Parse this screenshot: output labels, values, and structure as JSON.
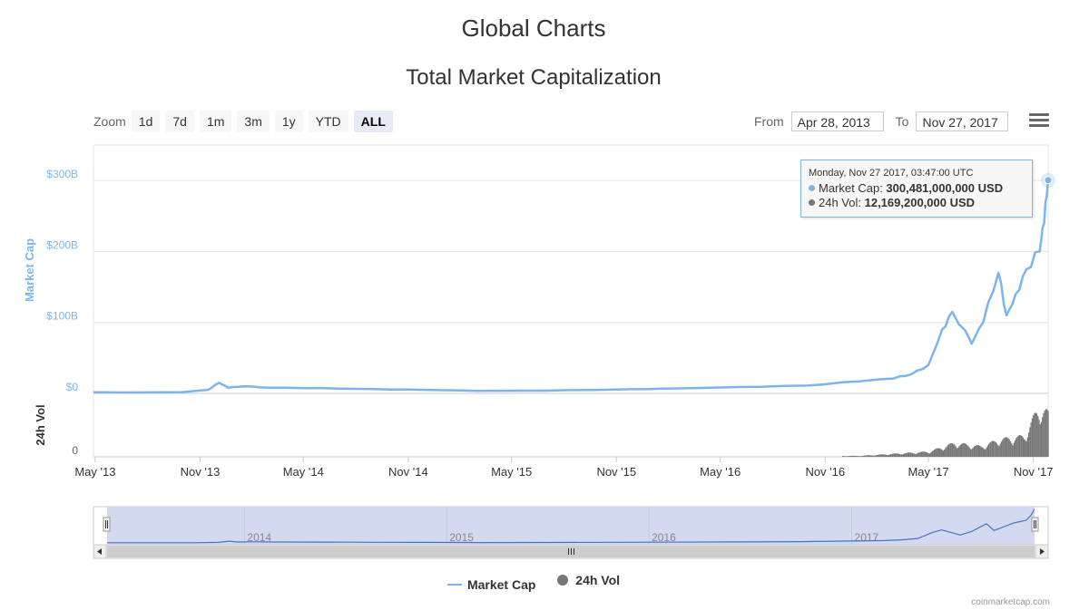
{
  "page": {
    "heading": "Global Charts",
    "credits": "coinmarketcap.com"
  },
  "toolbar": {
    "zoom_label": "Zoom",
    "zoom_buttons": [
      "1d",
      "7d",
      "1m",
      "3m",
      "1y",
      "YTD",
      "ALL"
    ],
    "active_zoom": "ALL",
    "from_label": "From",
    "from_value": "Apr 28, 2013",
    "to_label": "To",
    "to_value": "Nov 27, 2017"
  },
  "tooltip": {
    "header": "Monday, Nov 27 2017, 03:47:00 UTC",
    "market_cap_label": "Market Cap: ",
    "market_cap_value": "300,481,000,000 USD",
    "volume_label": "24h Vol: ",
    "volume_value": "12,169,200,000 USD"
  },
  "colors": {
    "market_cap": "#7cb5ec",
    "volume": "#777777",
    "navigator_fill": "#d3d9ef",
    "axis_label": "#7cb5ec"
  },
  "chart_data": {
    "type": "line",
    "title": "Total Market Capitalization",
    "y_axis": {
      "label": "Market Cap",
      "ticks": [
        "$0",
        "$100B",
        "$200B",
        "$300B"
      ],
      "ylim": [
        0,
        350
      ]
    },
    "volume_axis": {
      "label": "24h Vol",
      "ticks": [
        "0"
      ]
    },
    "x_ticks": [
      "May '13",
      "Nov '13",
      "May '14",
      "Nov '14",
      "May '15",
      "Nov '15",
      "May '16",
      "Nov '16",
      "May '17",
      "Nov '17"
    ],
    "navigator_labels": [
      "2014",
      "2015",
      "2016",
      "2017"
    ],
    "legend": [
      "Market Cap",
      "24h Vol"
    ],
    "series": [
      {
        "name": "Market Cap",
        "unit": "billion USD",
        "points": [
          [
            "2013-04-28",
            1.5
          ],
          [
            "2013-07-01",
            1.3
          ],
          [
            "2013-10-01",
            1.8
          ],
          [
            "2013-11-15",
            5
          ],
          [
            "2013-12-04",
            15
          ],
          [
            "2013-12-20",
            8
          ],
          [
            "2014-01-15",
            10
          ],
          [
            "2014-03-01",
            8
          ],
          [
            "2014-06-01",
            7.5
          ],
          [
            "2014-09-01",
            6
          ],
          [
            "2014-12-01",
            5
          ],
          [
            "2015-03-01",
            3.6
          ],
          [
            "2015-07-01",
            3.8
          ],
          [
            "2015-11-01",
            5.5
          ],
          [
            "2016-01-15",
            6.5
          ],
          [
            "2016-06-01",
            9
          ],
          [
            "2016-10-01",
            11
          ],
          [
            "2017-01-01",
            17
          ],
          [
            "2017-03-01",
            21
          ],
          [
            "2017-04-01",
            27
          ],
          [
            "2017-05-01",
            40
          ],
          [
            "2017-05-25",
            90
          ],
          [
            "2017-06-12",
            115
          ],
          [
            "2017-07-16",
            70
          ],
          [
            "2017-08-05",
            100
          ],
          [
            "2017-09-01",
            170
          ],
          [
            "2017-09-15",
            110
          ],
          [
            "2017-10-01",
            140
          ],
          [
            "2017-10-20",
            175
          ],
          [
            "2017-11-12",
            200
          ],
          [
            "2017-11-20",
            240
          ],
          [
            "2017-11-27",
            300.481
          ]
        ]
      },
      {
        "name": "24h Vol",
        "unit": "billion USD",
        "points": [
          [
            "2013-04-28",
            0.02
          ],
          [
            "2013-12-01",
            0.1
          ],
          [
            "2014-06-01",
            0.05
          ],
          [
            "2015-06-01",
            0.05
          ],
          [
            "2016-06-01",
            0.1
          ],
          [
            "2017-01-01",
            0.3
          ],
          [
            "2017-05-01",
            1.5
          ],
          [
            "2017-06-15",
            4
          ],
          [
            "2017-08-01",
            3
          ],
          [
            "2017-09-01",
            5
          ],
          [
            "2017-10-15",
            6
          ],
          [
            "2017-11-12",
            15
          ],
          [
            "2017-11-27",
            12.1692
          ]
        ]
      }
    ]
  }
}
